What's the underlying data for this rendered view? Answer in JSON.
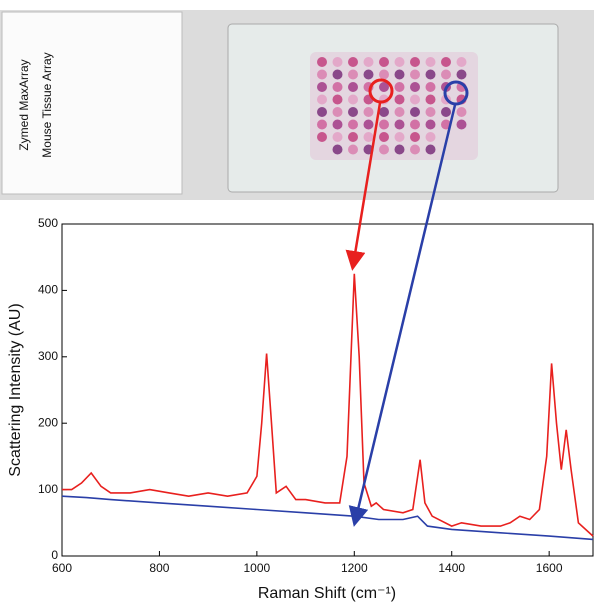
{
  "chart_data": {
    "type": "line",
    "annotations": [
      "Zymed MaxArray",
      "Mouse Tissue Array"
    ],
    "x_label": "Raman Shift (cm⁻¹)",
    "y_label": "Scattering Intensity (AU)",
    "xlim": [
      600,
      1690
    ],
    "xticks": [
      600,
      800,
      1000,
      1200,
      1400,
      1600
    ],
    "ylim": [
      0,
      500
    ],
    "yticks": [
      0,
      100,
      200,
      300,
      400,
      500
    ],
    "series": [
      {
        "color": "#e8201e",
        "x": [
          600,
          620,
          640,
          660,
          680,
          700,
          740,
          780,
          820,
          860,
          900,
          940,
          980,
          1000,
          1010,
          1020,
          1030,
          1040,
          1060,
          1080,
          1100,
          1140,
          1170,
          1185,
          1200,
          1210,
          1220,
          1235,
          1245,
          1260,
          1300,
          1320,
          1335,
          1345,
          1360,
          1400,
          1420,
          1460,
          1500,
          1520,
          1540,
          1560,
          1580,
          1595,
          1605,
          1615,
          1625,
          1635,
          1645,
          1660,
          1690
        ],
        "values": [
          100,
          100,
          110,
          125,
          105,
          95,
          95,
          100,
          95,
          90,
          95,
          90,
          95,
          120,
          200,
          305,
          200,
          95,
          105,
          85,
          85,
          80,
          80,
          150,
          425,
          300,
          110,
          75,
          80,
          70,
          65,
          70,
          145,
          80,
          60,
          45,
          50,
          45,
          45,
          50,
          60,
          55,
          70,
          150,
          290,
          200,
          130,
          190,
          130,
          50,
          30
        ]
      },
      {
        "color": "#2a3fa8",
        "x": [
          600,
          650,
          700,
          800,
          900,
          1000,
          1100,
          1200,
          1250,
          1300,
          1330,
          1350,
          1400,
          1500,
          1600,
          1690
        ],
        "values": [
          90,
          88,
          85,
          80,
          75,
          70,
          65,
          60,
          55,
          55,
          60,
          45,
          40,
          35,
          30,
          25
        ]
      }
    ]
  }
}
